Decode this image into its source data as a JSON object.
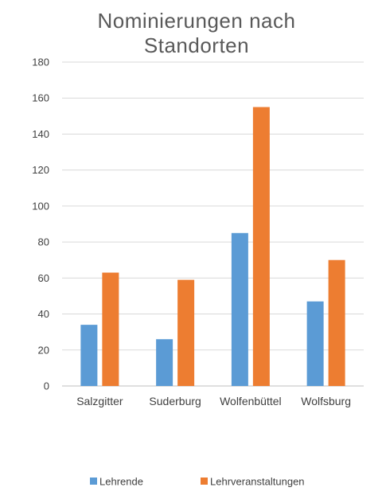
{
  "chart_data": {
    "type": "bar",
    "title_lines": [
      "Nominierungen nach",
      "Standorten"
    ],
    "categories": [
      "Salzgitter",
      "Suderburg",
      "Wolfenbüttel",
      "Wolfsburg"
    ],
    "series": [
      {
        "name": "Lehrende",
        "values": [
          34,
          26,
          85,
          47
        ],
        "color": "#5B9BD5"
      },
      {
        "name": "Lehrveranstaltungen",
        "values": [
          63,
          59,
          155,
          70
        ],
        "color": "#ED7D31"
      }
    ],
    "ylim": [
      0,
      180
    ],
    "yticks": [
      0,
      20,
      40,
      60,
      80,
      100,
      120,
      140,
      160,
      180
    ],
    "grid": true,
    "legend_position": "bottom"
  }
}
